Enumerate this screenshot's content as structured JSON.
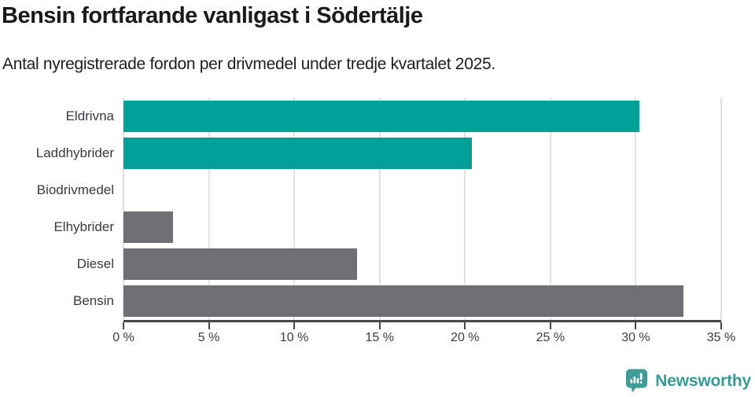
{
  "header": {
    "title": "Bensin fortfarande vanligast i Södertälje",
    "subtitle": "Antal nyregistrerade fordon per drivmedel under tredje kvartalet 2025."
  },
  "chart_data": {
    "type": "bar",
    "orientation": "horizontal",
    "title": "Bensin fortfarande vanligast i Södertälje",
    "subtitle": "Antal nyregistrerade fordon per drivmedel under tredje kvartalet 2025.",
    "categories": [
      "Eldrivna",
      "Laddhybrider",
      "Biodrivmedel",
      "Elhybrider",
      "Diesel",
      "Bensin"
    ],
    "values": [
      30.2,
      20.4,
      0,
      2.9,
      13.7,
      32.8
    ],
    "unit": "%",
    "xlim": [
      0,
      35
    ],
    "tick_step": 5,
    "x_ticks": [
      "0 %",
      "5 %",
      "10 %",
      "15 %",
      "20 %",
      "25 %",
      "30 %",
      "35 %"
    ],
    "grid": true,
    "legend": "none",
    "bar_colors": [
      "#00a099",
      "#00a099",
      "#6e6e73",
      "#6e6e73",
      "#6e6e73",
      "#6e6e73"
    ],
    "colors": {
      "highlight_teal": "#00a099",
      "default_gray": "#6e6e73",
      "gridline": "#e2e2e2",
      "axis": "#47474c"
    }
  },
  "footer": {
    "brand": "Newsworthy",
    "brand_color": "#3a9a93",
    "logo_icon": "speech-bubble-bar-chart-exclamation"
  }
}
